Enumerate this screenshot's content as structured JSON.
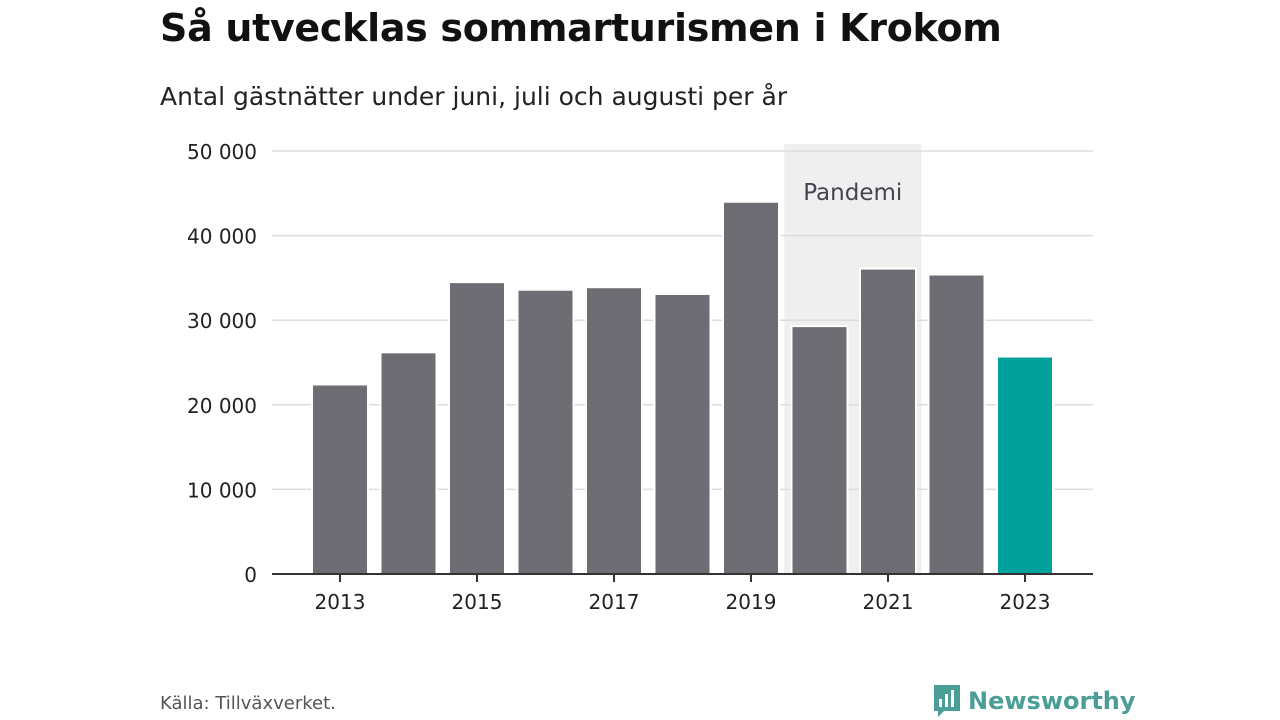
{
  "title": "Så utvecklas sommarturismen i Krokom",
  "subtitle": "Antal gästnätter under juni, juli och augusti per år",
  "source": "Källa: Tillväxverket.",
  "brand": "Newsworthy",
  "colors": {
    "bar": "#6e6d73",
    "highlight": "#00a19a",
    "shade": "#efefef",
    "grid": "#dddddd",
    "axis": "#333333",
    "brand": "#4a9e96"
  },
  "chart_data": {
    "type": "bar",
    "categories": [
      "2013",
      "2014",
      "2015",
      "2016",
      "2017",
      "2018",
      "2019",
      "2020",
      "2021",
      "2022",
      "2023"
    ],
    "values": [
      22400,
      26200,
      34500,
      33600,
      33900,
      33100,
      44000,
      29300,
      36100,
      35400,
      25700
    ],
    "highlight_index": 10,
    "x_tick_labels": [
      "2013",
      "2015",
      "2017",
      "2019",
      "2021",
      "2023"
    ],
    "y_ticks": [
      0,
      10000,
      20000,
      30000,
      40000,
      50000
    ],
    "y_tick_labels": [
      "0",
      "10 000",
      "20 000",
      "30 000",
      "40 000",
      "50 000"
    ],
    "ylim": [
      0,
      50000
    ],
    "grid": true,
    "annotation": {
      "label": "Pandemi",
      "from": "2020",
      "to": "2021"
    }
  }
}
